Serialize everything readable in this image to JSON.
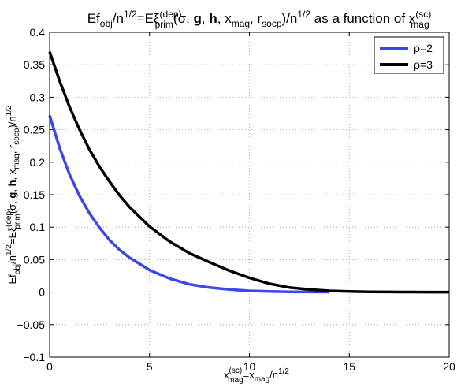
{
  "chart_data": {
    "type": "line",
    "title": {
      "p1": "Ef",
      "p1_sub": "obj",
      "p2": "/n",
      "p2_sup": "1/2",
      "p3": "=Eξ",
      "p3_sup": "(dep)",
      "p3_sub": "prim",
      "p4": "(σ, ",
      "p4_b1": "g",
      "p4_m": ", ",
      "p4_b2": "h",
      "p4_m2": ", x",
      "p4_sub1": "mag",
      "p5": ", r",
      "p5_sub": "socp",
      "p6": ")/n",
      "p6_sup": "1/2",
      "p7": " as a function of x",
      "p7_sup": "(sc)",
      "p7_sub": "mag"
    },
    "xlabel": {
      "p1": "x",
      "p1_sup": "(sc)",
      "p1_sub": "mag",
      "p2": "=x",
      "p2_sub": "mag",
      "p3": "/n",
      "p3_sup": "1/2"
    },
    "ylabel": {
      "p1": "Ef",
      "p1_sub": "obj",
      "p2": "/n",
      "p2_sup": "1/2",
      "p3": "=Eξ",
      "p3_sup": "(dep)",
      "p3_sub": "prim",
      "p4": "(σ, ",
      "p4_b1": "g",
      "p4_m": ", ",
      "p4_b2": "h",
      "p4_m2": ", x",
      "p4_sub1": "mag",
      "p5": ", r",
      "p5_sub": "socp",
      "p6": ")/n",
      "p6_sup": "1/2"
    },
    "xlim": [
      0,
      20
    ],
    "ylim": [
      -0.1,
      0.4
    ],
    "xticks": [
      0,
      5,
      10,
      15,
      20
    ],
    "xtick_labels": [
      "0",
      "5",
      "10",
      "15",
      "20"
    ],
    "yticks": [
      -0.1,
      -0.05,
      0,
      0.05,
      0.1,
      0.15,
      0.2,
      0.25,
      0.3,
      0.35,
      0.4
    ],
    "ytick_labels": [
      "−0.1",
      "−0.05",
      "0",
      "0.05",
      "0.1",
      "0.15",
      "0.2",
      "0.25",
      "0.3",
      "0.35",
      "0.4"
    ],
    "grid": true,
    "legend_position": "top-right",
    "series": [
      {
        "name": "ρ=2",
        "color": "#3b48e8",
        "x": [
          0,
          0.5,
          1,
          1.5,
          2,
          2.5,
          3,
          3.5,
          4,
          5,
          6,
          7,
          8,
          9,
          10,
          11,
          12,
          13,
          14
        ],
        "y": [
          0.272,
          0.222,
          0.181,
          0.148,
          0.121,
          0.099,
          0.08,
          0.065,
          0.053,
          0.034,
          0.021,
          0.012,
          0.007,
          0.004,
          0.002,
          0.001,
          0.0005,
          0.0002,
          0.0001
        ]
      },
      {
        "name": "ρ=3",
        "color": "#000000",
        "x": [
          0,
          0.5,
          1,
          1.5,
          2,
          2.5,
          3,
          3.5,
          4,
          5,
          6,
          7,
          8,
          9,
          10,
          11,
          12,
          13,
          14,
          15,
          16,
          17,
          18,
          19,
          20
        ],
        "y": [
          0.37,
          0.325,
          0.285,
          0.25,
          0.219,
          0.193,
          0.17,
          0.149,
          0.131,
          0.101,
          0.078,
          0.06,
          0.046,
          0.033,
          0.022,
          0.013,
          0.007,
          0.004,
          0.002,
          0.001,
          0.0005,
          0.0002,
          0.0001,
          0.0,
          0.0
        ]
      }
    ]
  }
}
